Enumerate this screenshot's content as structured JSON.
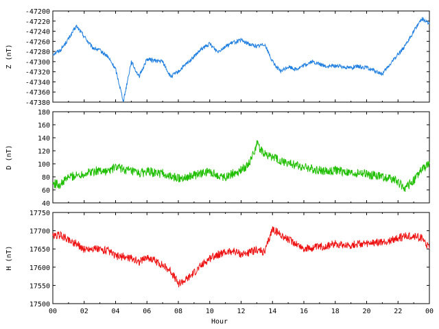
{
  "chart_data": [
    {
      "type": "line",
      "ylabel": "Z (nT)",
      "ylim": [
        -47380,
        -47200
      ],
      "yticks": [
        "-47200",
        "-47220",
        "-47240",
        "-47260",
        "-47280",
        "-47300",
        "-47320",
        "-47340",
        "-47360",
        "-47380"
      ],
      "color": "#1f7fe0",
      "x": [
        0,
        0.5,
        1.0,
        1.5,
        2.0,
        2.5,
        3.0,
        3.5,
        4.0,
        4.5,
        5.0,
        5.5,
        6.0,
        6.5,
        7.0,
        7.5,
        8.0,
        8.5,
        9.0,
        9.5,
        10.0,
        10.5,
        11.0,
        11.5,
        12.0,
        12.5,
        13.0,
        13.5,
        14.0,
        14.5,
        15.0,
        15.5,
        16.0,
        16.5,
        17.0,
        17.5,
        18.0,
        18.5,
        19.0,
        19.5,
        20.0,
        20.5,
        21.0,
        21.5,
        22.0,
        22.5,
        23.0,
        23.5,
        24.0
      ],
      "y": [
        -47285,
        -47277,
        -47255,
        -47230,
        -47250,
        -47272,
        -47278,
        -47290,
        -47315,
        -47378,
        -47300,
        -47330,
        -47295,
        -47298,
        -47300,
        -47330,
        -47320,
        -47305,
        -47290,
        -47275,
        -47265,
        -47280,
        -47270,
        -47262,
        -47258,
        -47265,
        -47270,
        -47265,
        -47300,
        -47320,
        -47310,
        -47315,
        -47308,
        -47300,
        -47305,
        -47310,
        -47308,
        -47310,
        -47312,
        -47310,
        -47312,
        -47318,
        -47325,
        -47305,
        -47285,
        -47268,
        -47240,
        -47215,
        -47225
      ]
    },
    {
      "type": "line",
      "ylabel": "D (nT)",
      "ylim": [
        40,
        180
      ],
      "yticks": [
        "180",
        "160",
        "140",
        "120",
        "100",
        "80",
        "60",
        "40"
      ],
      "color": "#1fbf00",
      "x": [
        0,
        0.5,
        1.0,
        1.5,
        2.0,
        2.5,
        3.0,
        3.5,
        4.0,
        4.5,
        5.0,
        5.5,
        6.0,
        6.5,
        7.0,
        7.5,
        8.0,
        8.5,
        9.0,
        9.5,
        10.0,
        10.5,
        11.0,
        11.5,
        12.0,
        12.5,
        13.0,
        13.5,
        14.0,
        14.5,
        15.0,
        15.5,
        16.0,
        16.5,
        17.0,
        17.5,
        18.0,
        18.5,
        19.0,
        19.5,
        20.0,
        20.5,
        21.0,
        21.5,
        22.0,
        22.5,
        23.0,
        23.5,
        24.0
      ],
      "y": [
        70,
        68,
        80,
        82,
        85,
        88,
        90,
        88,
        95,
        92,
        88,
        85,
        88,
        86,
        85,
        80,
        78,
        80,
        82,
        85,
        88,
        82,
        80,
        85,
        90,
        100,
        130,
        115,
        110,
        105,
        100,
        98,
        95,
        92,
        90,
        88,
        90,
        88,
        85,
        86,
        84,
        82,
        80,
        78,
        72,
        62,
        75,
        90,
        100
      ]
    },
    {
      "type": "line",
      "ylabel": "H (nT)",
      "ylim": [
        17500,
        17750
      ],
      "yticks": [
        "17750",
        "17700",
        "17650",
        "17600",
        "17550",
        "17500"
      ],
      "color": "#ee1111",
      "xlabel": "Hour",
      "xticks": [
        "00",
        "02",
        "04",
        "06",
        "08",
        "10",
        "12",
        "14",
        "16",
        "18",
        "20",
        "22",
        "00"
      ],
      "x": [
        0,
        0.5,
        1.0,
        1.5,
        2.0,
        2.5,
        3.0,
        3.5,
        4.0,
        4.5,
        5.0,
        5.5,
        6.0,
        6.5,
        7.0,
        7.5,
        8.0,
        8.5,
        9.0,
        9.5,
        10.0,
        10.5,
        11.0,
        11.5,
        12.0,
        12.5,
        13.0,
        13.5,
        14.0,
        14.5,
        15.0,
        15.5,
        16.0,
        16.5,
        17.0,
        17.5,
        18.0,
        18.5,
        19.0,
        19.5,
        20.0,
        20.5,
        21.0,
        21.5,
        22.0,
        22.5,
        23.0,
        23.5,
        24.0
      ],
      "y": [
        17685,
        17688,
        17675,
        17665,
        17648,
        17652,
        17648,
        17645,
        17630,
        17628,
        17625,
        17615,
        17628,
        17618,
        17605,
        17590,
        17555,
        17565,
        17585,
        17605,
        17625,
        17635,
        17640,
        17645,
        17635,
        17640,
        17648,
        17640,
        17705,
        17690,
        17675,
        17665,
        17650,
        17652,
        17655,
        17658,
        17665,
        17662,
        17660,
        17665,
        17662,
        17668,
        17668,
        17672,
        17680,
        17685,
        17685,
        17680,
        17650
      ]
    }
  ]
}
